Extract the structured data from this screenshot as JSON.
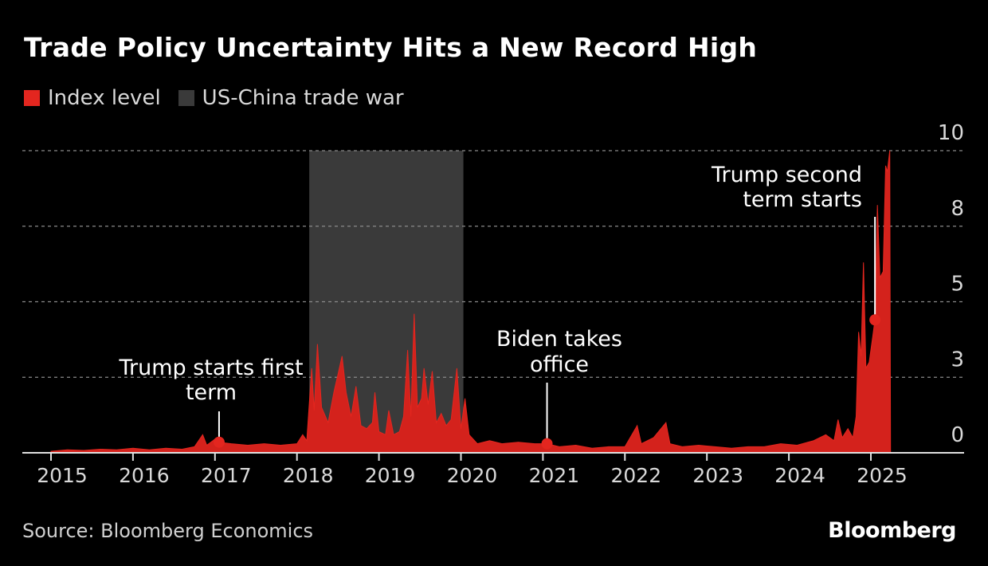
{
  "title": "Trade Policy Uncertainty Hits a New Record High",
  "legend": [
    {
      "label": "Index level",
      "color": "#e3261f"
    },
    {
      "label": "US-China trade war",
      "color": "#3a3a3a"
    }
  ],
  "source": "Source: Bloomberg Economics",
  "logo": "Bloomberg",
  "chart_data": {
    "type": "area",
    "title": "Trade Policy Uncertainty Hits a New Record High",
    "xlabel": "",
    "ylabel": "",
    "xlim": [
      2014.65,
      2026.1
    ],
    "ylim": [
      0,
      10
    ],
    "x_ticks": [
      "2015",
      "2016",
      "2017",
      "2018",
      "2019",
      "2020",
      "2021",
      "2022",
      "2023",
      "2024",
      "2025"
    ],
    "y_ticks": [
      {
        "value": 0,
        "label": "0"
      },
      {
        "value": 2.5,
        "label": "3"
      },
      {
        "value": 5,
        "label": "5"
      },
      {
        "value": 7.5,
        "label": "8"
      },
      {
        "value": 10,
        "label": "10"
      }
    ],
    "grid": "horizontal dashed",
    "shaded_region": {
      "label": "US-China trade war",
      "start": 2018.15,
      "end": 2020.03
    },
    "series": [
      {
        "name": "Index level",
        "points": [
          [
            2015,
            0.05
          ],
          [
            2015.2,
            0.1
          ],
          [
            2015.4,
            0.08
          ],
          [
            2015.6,
            0.12
          ],
          [
            2015.8,
            0.1
          ],
          [
            2016,
            0.15
          ],
          [
            2016.2,
            0.1
          ],
          [
            2016.4,
            0.15
          ],
          [
            2016.6,
            0.12
          ],
          [
            2016.75,
            0.2
          ],
          [
            2016.85,
            0.6
          ],
          [
            2016.9,
            0.25
          ],
          [
            2017,
            0.45
          ],
          [
            2017.05,
            0.35
          ],
          [
            2017.2,
            0.3
          ],
          [
            2017.4,
            0.25
          ],
          [
            2017.6,
            0.3
          ],
          [
            2017.8,
            0.25
          ],
          [
            2018,
            0.3
          ],
          [
            2018.07,
            0.6
          ],
          [
            2018.12,
            0.4
          ],
          [
            2018.18,
            2.8
          ],
          [
            2018.21,
            1.4
          ],
          [
            2018.25,
            3.6
          ],
          [
            2018.3,
            1.5
          ],
          [
            2018.38,
            1.0
          ],
          [
            2018.45,
            2.0
          ],
          [
            2018.5,
            2.6
          ],
          [
            2018.55,
            3.2
          ],
          [
            2018.6,
            2.0
          ],
          [
            2018.66,
            1.2
          ],
          [
            2018.72,
            2.2
          ],
          [
            2018.78,
            0.9
          ],
          [
            2018.85,
            0.8
          ],
          [
            2018.92,
            1.0
          ],
          [
            2018.95,
            2.0
          ],
          [
            2019,
            0.7
          ],
          [
            2019.08,
            0.6
          ],
          [
            2019.12,
            1.4
          ],
          [
            2019.18,
            0.6
          ],
          [
            2019.25,
            0.7
          ],
          [
            2019.3,
            1.2
          ],
          [
            2019.35,
            3.4
          ],
          [
            2019.39,
            1.2
          ],
          [
            2019.43,
            4.6
          ],
          [
            2019.47,
            1.5
          ],
          [
            2019.52,
            1.8
          ],
          [
            2019.55,
            2.8
          ],
          [
            2019.6,
            1.6
          ],
          [
            2019.65,
            2.7
          ],
          [
            2019.7,
            1.0
          ],
          [
            2019.76,
            1.3
          ],
          [
            2019.82,
            0.9
          ],
          [
            2019.88,
            1.1
          ],
          [
            2019.95,
            2.8
          ],
          [
            2020,
            0.8
          ],
          [
            2020.05,
            1.8
          ],
          [
            2020.1,
            0.6
          ],
          [
            2020.2,
            0.3
          ],
          [
            2020.35,
            0.4
          ],
          [
            2020.5,
            0.3
          ],
          [
            2020.7,
            0.35
          ],
          [
            2020.9,
            0.3
          ],
          [
            2021.05,
            0.3
          ],
          [
            2021.2,
            0.2
          ],
          [
            2021.4,
            0.25
          ],
          [
            2021.6,
            0.15
          ],
          [
            2021.8,
            0.2
          ],
          [
            2022,
            0.2
          ],
          [
            2022.15,
            0.9
          ],
          [
            2022.2,
            0.3
          ],
          [
            2022.35,
            0.5
          ],
          [
            2022.5,
            1.0
          ],
          [
            2022.55,
            0.3
          ],
          [
            2022.7,
            0.2
          ],
          [
            2022.9,
            0.25
          ],
          [
            2023.1,
            0.2
          ],
          [
            2023.3,
            0.15
          ],
          [
            2023.5,
            0.2
          ],
          [
            2023.7,
            0.2
          ],
          [
            2023.9,
            0.3
          ],
          [
            2024.1,
            0.25
          ],
          [
            2024.3,
            0.4
          ],
          [
            2024.45,
            0.6
          ],
          [
            2024.55,
            0.4
          ],
          [
            2024.6,
            1.1
          ],
          [
            2024.65,
            0.5
          ],
          [
            2024.72,
            0.8
          ],
          [
            2024.78,
            0.5
          ],
          [
            2024.82,
            1.2
          ],
          [
            2024.85,
            4.0
          ],
          [
            2024.88,
            3.2
          ],
          [
            2024.91,
            6.3
          ],
          [
            2024.94,
            2.8
          ],
          [
            2024.98,
            3.0
          ],
          [
            2025.02,
            3.8
          ],
          [
            2025.05,
            4.4
          ],
          [
            2025.08,
            8.2
          ],
          [
            2025.11,
            5.8
          ],
          [
            2025.15,
            6.0
          ],
          [
            2025.18,
            9.5
          ],
          [
            2025.2,
            9.3
          ],
          [
            2025.23,
            10.0
          ],
          [
            2025.24,
            0
          ]
        ]
      }
    ],
    "annotations": [
      {
        "text": [
          "Trump starts first",
          "term"
        ],
        "x": 2017.05,
        "y": 0.35
      },
      {
        "text": [
          "Biden takes",
          "office"
        ],
        "x": 2021.05,
        "y": 0.3
      },
      {
        "text": [
          "Trump second",
          "term starts"
        ],
        "x": 2025.05,
        "y": 4.4
      }
    ]
  }
}
